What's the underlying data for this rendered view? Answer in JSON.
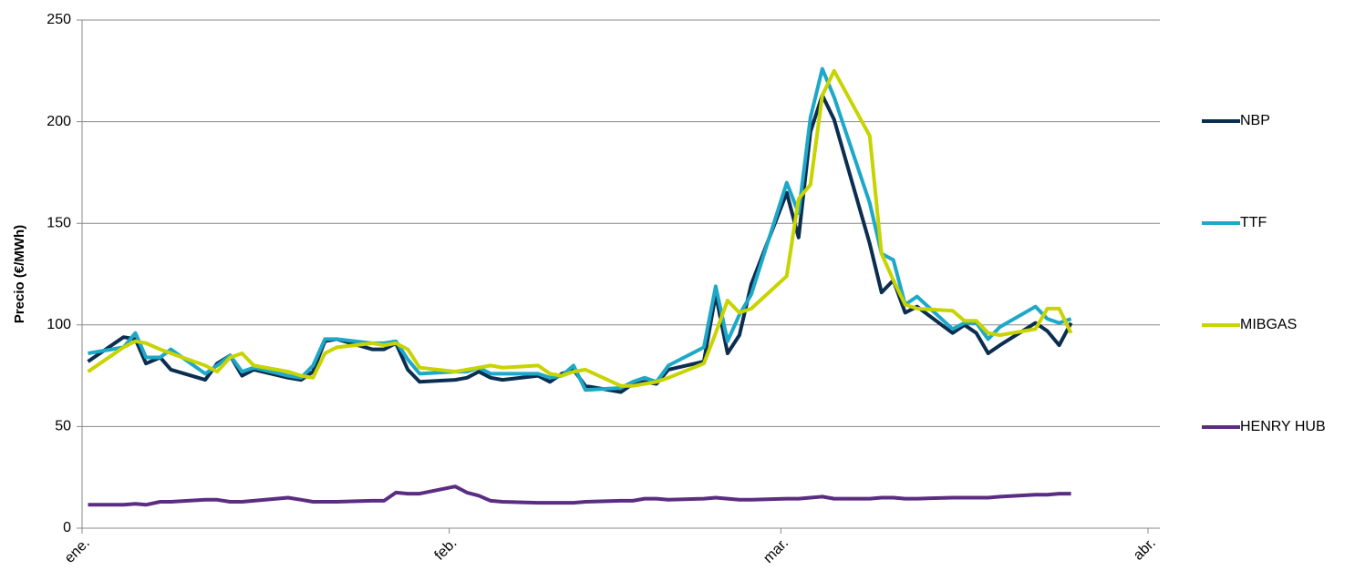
{
  "chart_data": {
    "type": "line",
    "y_label": "Precio (€/MWh)",
    "x": [
      0.5,
      3.5,
      4.5,
      5.4,
      6.6,
      7.5,
      10.4,
      11.4,
      12.5,
      13.5,
      14.5,
      17.4,
      18.5,
      19.5,
      20.5,
      21.5,
      24.5,
      25.5,
      26.5,
      27.5,
      28.5,
      31.5,
      32.5,
      33.5,
      34.5,
      35.5,
      38.5,
      39.5,
      40.5,
      41.5,
      42.5,
      45.5,
      46.5,
      47.5,
      48.5,
      49.5,
      52.5,
      53.5,
      54.5,
      55.5,
      56.5,
      59.5,
      60.5,
      61.5,
      62.5,
      63.5,
      66.5,
      67.5,
      68.5,
      69.5,
      70.5,
      73.5,
      74.5,
      75.5,
      76.5,
      77.5,
      80.5,
      81.5,
      82.5,
      83.5
    ],
    "series": [
      {
        "name": "NBP",
        "color": "#0b2d4f",
        "values": [
          82,
          94,
          93,
          81,
          84,
          78,
          73,
          81,
          85,
          75,
          78,
          74,
          73,
          77,
          92,
          93,
          88,
          88,
          91,
          78,
          72,
          73,
          74,
          77,
          74,
          73,
          75,
          72,
          76,
          78,
          70,
          67,
          71,
          72,
          71,
          78,
          82,
          115,
          86,
          95,
          120,
          165,
          143,
          195,
          213,
          201,
          140,
          116,
          122,
          106,
          109,
          96,
          100,
          96,
          86,
          90,
          101,
          97,
          90,
          101
        ]
      },
      {
        "name": "TTF",
        "color": "#1ea8c8",
        "values": [
          86,
          89,
          96,
          84,
          84,
          88,
          76,
          80,
          85,
          77,
          79,
          75,
          74,
          80,
          93,
          93,
          91,
          91,
          92,
          83,
          76,
          77,
          77,
          79,
          76,
          76,
          76,
          74,
          75,
          80,
          68,
          69,
          72,
          74,
          72,
          80,
          89,
          119,
          92,
          105,
          115,
          170,
          155,
          202,
          226,
          212,
          160,
          135,
          132,
          110,
          114,
          98,
          101,
          101,
          93,
          99,
          109,
          103,
          101,
          103
        ]
      },
      {
        "name": "MIBGAS",
        "color": "#c8d400",
        "values": [
          77,
          89,
          92,
          91,
          88,
          86,
          80,
          77,
          84,
          86,
          80,
          77,
          75,
          74,
          86,
          89,
          91,
          90,
          91,
          88,
          79,
          77,
          78,
          79,
          80,
          79,
          80,
          76,
          75,
          77,
          78,
          70,
          70,
          71,
          72,
          74,
          81,
          96,
          112,
          106,
          108,
          124,
          162,
          169,
          213,
          225,
          193,
          135,
          122,
          110,
          108,
          107,
          102,
          102,
          96,
          95,
          98,
          108,
          108,
          96
        ]
      },
      {
        "name": "HENRY HUB",
        "color": "#5b2d82",
        "values": [
          11.5,
          11.5,
          12,
          11.5,
          13,
          13,
          14,
          14,
          13,
          13,
          13.5,
          15,
          14,
          13,
          13,
          13,
          13.5,
          13.5,
          17.5,
          17,
          17,
          20.5,
          17.5,
          16,
          13.5,
          13,
          12.5,
          12.5,
          12.5,
          12.5,
          13,
          13.5,
          13.5,
          14.5,
          14.5,
          14,
          14.5,
          15,
          14.5,
          14,
          14,
          14.5,
          14.5,
          15,
          15.5,
          14.5,
          14.5,
          15,
          15,
          14.5,
          14.5,
          15,
          15,
          15,
          15,
          15.5,
          16.5,
          16.5,
          17,
          17
        ]
      }
    ],
    "xlim": [
      0,
      91
    ],
    "xticks": [
      {
        "value": 0,
        "label": "ene."
      },
      {
        "value": 31,
        "label": "feb."
      },
      {
        "value": 59,
        "label": "mar."
      },
      {
        "value": 90,
        "label": "abr."
      }
    ],
    "ylim": [
      0,
      250
    ],
    "yticks": [
      0,
      50,
      100,
      150,
      200,
      250
    ],
    "grid": true,
    "legend": "right"
  }
}
